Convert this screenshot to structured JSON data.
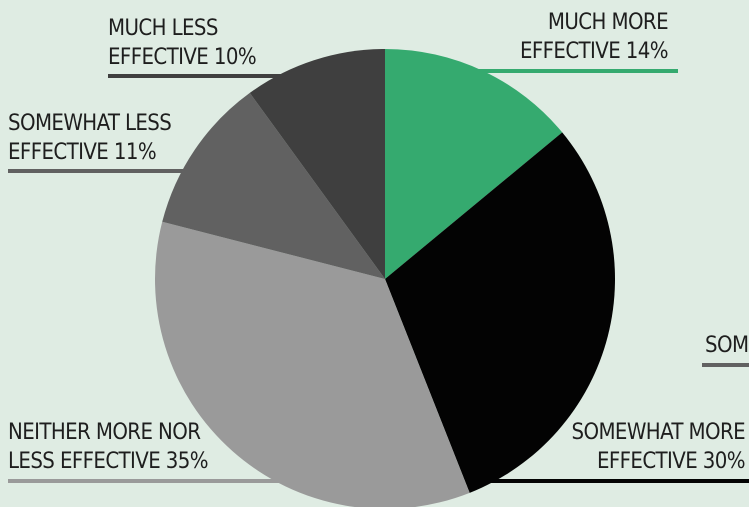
{
  "chart_data": {
    "type": "pie",
    "categories": [
      "MUCH MORE EFFECTIVE",
      "SOMEWHAT MORE EFFECTIVE",
      "NEITHER MORE NOR LESS EFFECTIVE",
      "SOMEWHAT LESS EFFECTIVE",
      "MUCH LESS EFFECTIVE"
    ],
    "values": [
      14,
      30,
      35,
      11,
      10
    ],
    "colors": [
      "#35aa6f",
      "#030303",
      "#9a9a9a",
      "#616161",
      "#3f3f3f"
    ],
    "labels": [
      {
        "line1": "MUCH MORE",
        "line2": "EFFECTIVE 14%"
      },
      {
        "line1": "SOMEWHAT MORE",
        "line2": "EFFECTIVE 30%"
      },
      {
        "line1": "NEITHER MORE NOR",
        "line2": "LESS EFFECTIVE 35%"
      },
      {
        "line1": "SOMEWHAT LESS",
        "line2": "EFFECTIVE 11%"
      },
      {
        "line1": "MUCH LESS",
        "line2": "EFFECTIVE  10%"
      }
    ],
    "partial_label": "SOM"
  }
}
